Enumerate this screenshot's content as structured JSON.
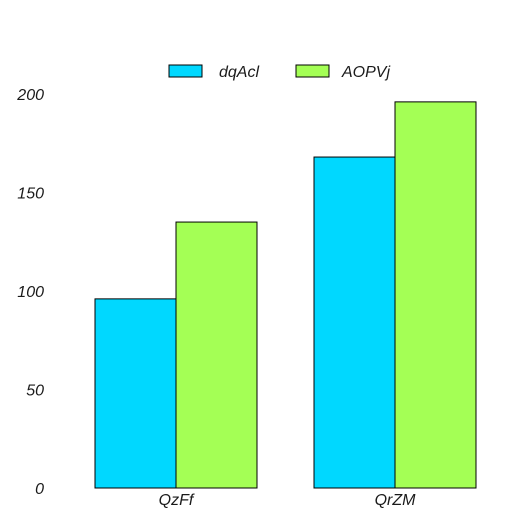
{
  "chart_data": {
    "type": "bar",
    "categories": [
      "QzFf",
      "QrZM"
    ],
    "series": [
      {
        "name": "dqAcl",
        "color": "#00d8ff",
        "values": [
          96,
          168
        ]
      },
      {
        "name": "AOPVj",
        "color": "#a4ff55",
        "values": [
          135,
          196
        ]
      }
    ],
    "ylim": [
      0,
      200
    ],
    "yticks": [
      0,
      50,
      100,
      150,
      200
    ],
    "grid": false,
    "legend": "top-center"
  }
}
